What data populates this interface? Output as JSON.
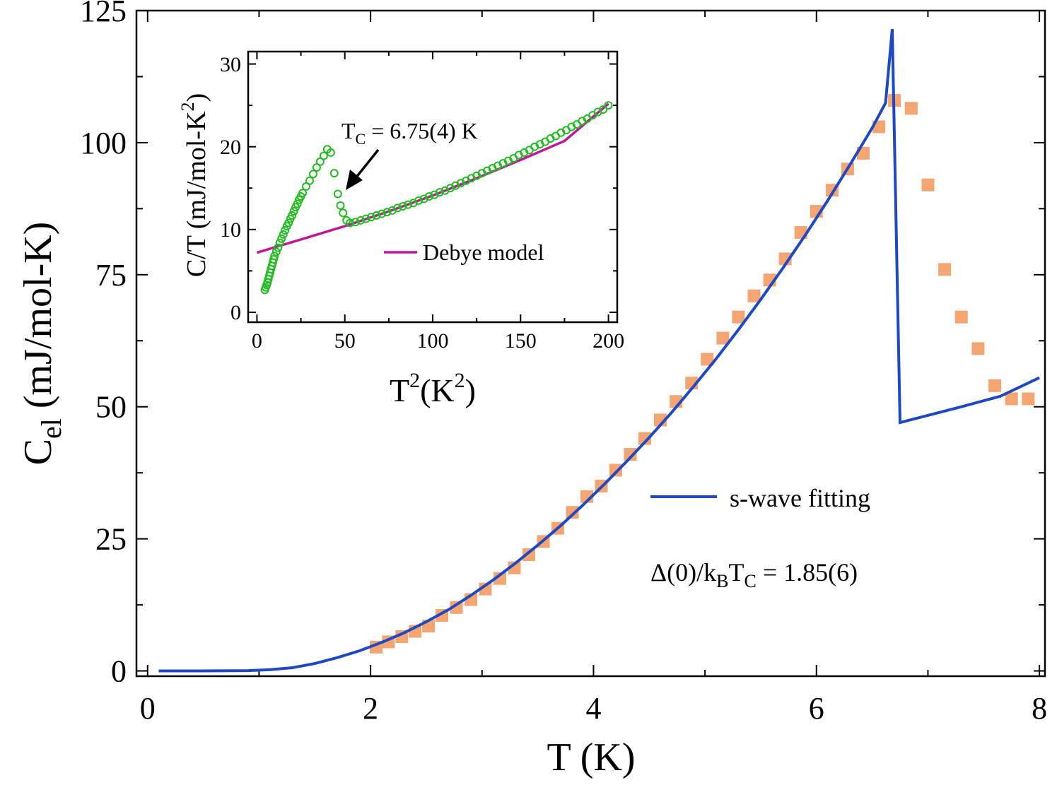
{
  "chart_data": [
    {
      "type": "scatter",
      "ylabel_main": "C",
      "ylabel_sub": "el",
      "ylabel_rest": " (mJ/mol-K)",
      "xlabel": "T (K)",
      "xlim": [
        -0.1,
        8.05
      ],
      "ylim": [
        -1,
        125
      ],
      "xticks": [
        0,
        2,
        4,
        6,
        8
      ],
      "yticks": [
        0,
        25,
        50,
        75,
        100,
        125
      ],
      "series": [
        {
          "kind": "points",
          "marker": "square",
          "color": "#f5a571",
          "x": [
            2.05,
            2.16,
            2.28,
            2.4,
            2.52,
            2.64,
            2.77,
            2.9,
            3.03,
            3.16,
            3.29,
            3.42,
            3.55,
            3.68,
            3.81,
            3.94,
            4.07,
            4.2,
            4.33,
            4.46,
            4.6,
            4.74,
            4.88,
            5.02,
            5.16,
            5.3,
            5.44,
            5.58,
            5.72,
            5.86,
            6.0,
            6.14,
            6.28,
            6.42,
            6.56,
            6.7,
            6.85,
            7.0,
            7.15,
            7.3,
            7.45,
            7.6,
            7.75,
            7.9
          ],
          "y": [
            4.5,
            5.5,
            6.5,
            7.5,
            8.5,
            10.5,
            12,
            13.5,
            15.5,
            17.5,
            19.5,
            22,
            24.5,
            27,
            30,
            33,
            35,
            38,
            41,
            44,
            47.5,
            51,
            54.5,
            59,
            63,
            67,
            71,
            74,
            78,
            83,
            87,
            91,
            95,
            98,
            103,
            108,
            106.5,
            92,
            76,
            67,
            61,
            54,
            51.5,
            51.5
          ]
        },
        {
          "name": "s-wave fitting",
          "kind": "line",
          "color": "#1f48c4",
          "x": [
            0.1,
            0.5,
            0.9,
            1.1,
            1.3,
            1.5,
            1.7,
            1.9,
            2.1,
            2.3,
            2.5,
            2.7,
            2.9,
            3.1,
            3.3,
            3.5,
            3.7,
            3.9,
            4.1,
            4.3,
            4.5,
            4.7,
            4.9,
            5.1,
            5.3,
            5.5,
            5.7,
            5.9,
            6.1,
            6.3,
            6.5,
            6.62,
            6.68,
            6.75,
            7.3,
            7.65,
            8.0
          ],
          "y": [
            0,
            0,
            0.05,
            0.25,
            0.6,
            1.4,
            2.5,
            3.8,
            5.4,
            7.2,
            9.3,
            11.6,
            14.3,
            17.2,
            20.4,
            23.8,
            27.4,
            31.3,
            35.4,
            39.7,
            44.2,
            48.9,
            53.9,
            59.1,
            64.6,
            70.3,
            76.3,
            82.5,
            89,
            95.8,
            102.8,
            107.5,
            121.5,
            47,
            50,
            52,
            55.5
          ]
        }
      ],
      "legend": {
        "label": "s-wave fitting",
        "placement": "right"
      },
      "annotation": {
        "pre": "Δ(0)/k",
        "sub1": "B",
        "mid": "T",
        "sub2": "C",
        "post": " = 1.85(6)"
      }
    },
    {
      "type": "scatter",
      "inset": true,
      "ylabel": "C/T (mJ/mol-K",
      "ylabel_sup": "2",
      "ylabel_end": ")",
      "xlabel_pre": "T",
      "xlabel_sup1": "2",
      "xlabel_mid": "(K",
      "xlabel_sup2": "2",
      "xlabel_end": ")",
      "xlim": [
        -5,
        205
      ],
      "ylim": [
        -1.2,
        31.5
      ],
      "xticks": [
        0,
        50,
        100,
        150,
        200
      ],
      "yticks": [
        0,
        10,
        20,
        30
      ],
      "series": [
        {
          "kind": "points",
          "marker": "circle",
          "color": "#22bb22",
          "x": [
            4.5,
            5,
            5.5,
            6,
            6.5,
            7,
            7.5,
            8,
            8.5,
            9,
            9.5,
            10,
            11,
            12,
            13,
            14,
            15,
            16,
            17,
            18,
            19,
            20,
            21,
            22,
            23,
            24,
            25,
            26,
            28,
            30,
            32,
            34,
            36,
            38,
            40,
            42,
            44,
            46,
            47.5,
            49,
            51,
            53,
            56,
            59,
            62,
            65,
            68,
            71,
            74,
            77,
            80,
            83,
            86,
            89,
            92,
            95,
            98,
            101,
            104,
            107,
            110,
            113,
            116,
            119,
            122,
            125,
            128,
            131,
            134,
            137,
            140,
            143,
            146,
            149,
            152,
            155,
            158,
            161,
            164,
            167,
            170,
            173,
            176,
            179,
            182,
            185,
            188,
            191,
            194,
            197,
            200
          ],
          "y": [
            2.7,
            3.0,
            3.3,
            3.6,
            4.0,
            4.4,
            4.8,
            5.2,
            5.6,
            6.0,
            6.4,
            6.8,
            7.3,
            7.8,
            8.4,
            8.9,
            9.4,
            9.9,
            10.4,
            10.8,
            11.3,
            11.7,
            12.2,
            12.7,
            13.1,
            13.6,
            14.0,
            14.4,
            15.2,
            15.9,
            16.7,
            17.5,
            18.2,
            18.9,
            19.7,
            19.3,
            16.8,
            14.3,
            12.9,
            12.0,
            11.1,
            10.8,
            10.9,
            11.1,
            11.3,
            11.5,
            11.7,
            11.9,
            12.1,
            12.3,
            12.6,
            12.8,
            13.0,
            13.2,
            13.5,
            13.7,
            14.0,
            14.2,
            14.5,
            14.7,
            15.0,
            15.3,
            15.6,
            15.9,
            16.2,
            16.5,
            16.8,
            17.1,
            17.4,
            17.7,
            18.0,
            18.3,
            18.6,
            19.0,
            19.3,
            19.6,
            20.0,
            20.3,
            20.6,
            21.0,
            21.3,
            21.7,
            22.0,
            22.4,
            22.7,
            23.1,
            23.4,
            23.8,
            24.2,
            24.5,
            25.0
          ]
        },
        {
          "name": "Debye model",
          "kind": "line",
          "color": "#c0189b",
          "x": [
            0,
            25,
            50,
            75,
            100,
            125,
            150,
            175,
            200
          ],
          "y": [
            7.2,
            8.8,
            10.4,
            12.2,
            14.1,
            16.2,
            18.4,
            20.7,
            25.2
          ]
        }
      ],
      "legend": {
        "label": "Debye model",
        "placement": "bottom-right"
      },
      "annotation": {
        "pre": "T",
        "sub": "C",
        "post": " = 6.75(4) K"
      }
    }
  ]
}
